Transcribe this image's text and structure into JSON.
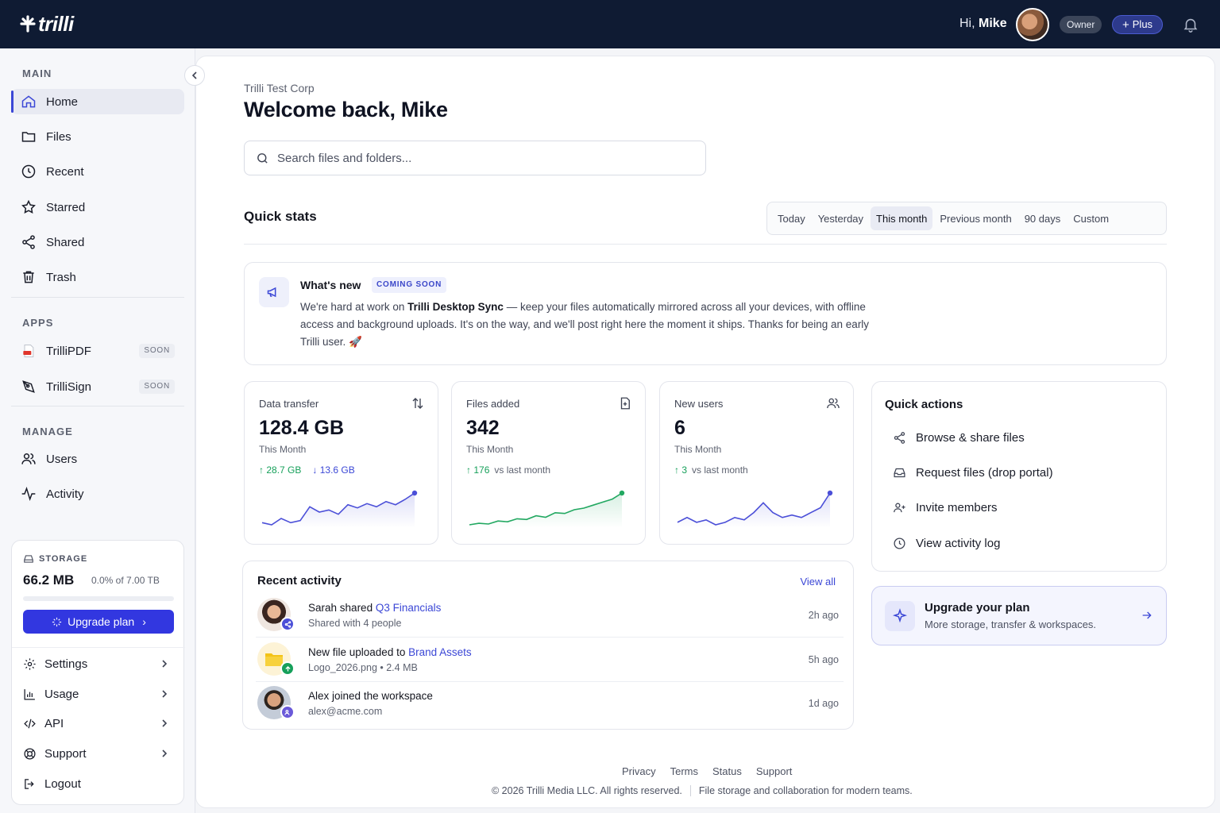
{
  "brand": {
    "name": "trilli"
  },
  "header": {
    "greeting_prefix": "Hi,",
    "user_name": "Mike",
    "role": "Owner",
    "plan": "Plus"
  },
  "sidebar": {
    "main_label": "MAIN",
    "main_items": [
      {
        "label": "Home",
        "icon": "home-icon",
        "active": true
      },
      {
        "label": "Files",
        "icon": "folder-icon"
      },
      {
        "label": "Recent",
        "icon": "clock-icon"
      },
      {
        "label": "Starred",
        "icon": "star-icon"
      },
      {
        "label": "Shared",
        "icon": "share-icon"
      },
      {
        "label": "Trash",
        "icon": "trash-icon"
      }
    ],
    "apps_label": "APPS",
    "apps": [
      {
        "label": "TrilliPDF",
        "badge": "SOON",
        "icon": "pdf-icon"
      },
      {
        "label": "TrilliSign",
        "badge": "SOON",
        "icon": "signature-icon"
      }
    ],
    "manage_label": "MANAGE",
    "manage_items": [
      {
        "label": "Users",
        "icon": "users-icon"
      },
      {
        "label": "Activity",
        "icon": "activity-icon"
      }
    ],
    "storage": {
      "label": "STORAGE",
      "used": "66.2 MB",
      "summary": "0.0% of 7.00 TB",
      "fraction_used": 0.0,
      "upgrade_label": "Upgrade plan"
    },
    "menu": [
      {
        "label": "Settings",
        "icon": "gear-icon"
      },
      {
        "label": "Usage",
        "icon": "bar-chart-icon"
      },
      {
        "label": "API",
        "icon": "code-icon"
      },
      {
        "label": "Support",
        "icon": "lifebuoy-icon"
      },
      {
        "label": "Logout",
        "icon": "logout-icon"
      }
    ]
  },
  "main": {
    "org": "Trilli Test Corp",
    "welcome": "Welcome back, Mike",
    "search_placeholder": "Search files and folders...",
    "quick_stats_title": "Quick stats",
    "ranges": [
      "Today",
      "Yesterday",
      "This month",
      "Previous month",
      "90 days",
      "Custom"
    ],
    "active_range": "This month",
    "whats_new": {
      "title": "What's new",
      "badge": "COMING SOON",
      "body_pre": "We're hard at work on ",
      "body_bold": "Trilli Desktop Sync",
      "body_post": " — keep your files automatically mirrored across all your devices, with offline access and background uploads. It's on the way, and we'll post right here the moment it ships. Thanks for being an early Trilli user. 🚀"
    },
    "stats": [
      {
        "label": "Data transfer",
        "value": "128.4 GB",
        "period": "This Month",
        "up": "28.7 GB",
        "down": "13.6 GB",
        "icon": "transfer-icon",
        "color": "#4b4fd8",
        "series": [
          30,
          28,
          34,
          30,
          32,
          45,
          40,
          42,
          38,
          47,
          44,
          48,
          45,
          50,
          47,
          52,
          58
        ]
      },
      {
        "label": "Files added",
        "value": "342",
        "period": "This Month",
        "delta": "176",
        "delta_text": "vs last month",
        "icon": "file-add-icon",
        "color": "#22a861",
        "series": [
          10,
          12,
          11,
          15,
          14,
          18,
          17,
          22,
          20,
          26,
          25,
          30,
          32,
          36,
          40,
          44,
          52
        ]
      },
      {
        "label": "New users",
        "value": "6",
        "period": "This Month",
        "delta": "3",
        "delta_text": "vs last month",
        "icon": "users-icon",
        "color": "#4b4fd8",
        "series": [
          10,
          12,
          10,
          11,
          9,
          10,
          12,
          11,
          14,
          18,
          14,
          12,
          13,
          12,
          14,
          16,
          22
        ]
      }
    ],
    "quick_actions": {
      "title": "Quick actions",
      "items": [
        {
          "label": "Browse & share files",
          "icon": "share-icon"
        },
        {
          "label": "Request files (drop portal)",
          "icon": "inbox-icon"
        },
        {
          "label": "Invite members",
          "icon": "user-plus-icon"
        },
        {
          "label": "View activity log",
          "icon": "clock-icon"
        }
      ]
    },
    "upgrade": {
      "title": "Upgrade your plan",
      "subtitle": "More storage, transfer & workspaces."
    },
    "recent_activity": {
      "title": "Recent activity",
      "view_all": "View all",
      "rows": [
        {
          "actor": "Sarah",
          "verb": "shared",
          "target": "Q3 Financials",
          "sub": "Shared with 4 people",
          "time": "2h ago"
        },
        {
          "actor": "New file uploaded",
          "verb": "to",
          "target": "Brand Assets",
          "sub": "Logo_2026.png  •  2.4 MB",
          "time": "5h ago"
        },
        {
          "actor": "Alex",
          "verb": "joined the workspace",
          "target": "",
          "sub": "alex@acme.com",
          "time": "1d ago"
        }
      ]
    },
    "footer": {
      "links": [
        "Privacy",
        "Terms",
        "Status",
        "Support"
      ],
      "copyright": "© 2026 Trilli Media LLC. All rights reserved.",
      "tagline": "File storage and collaboration for modern teams."
    }
  }
}
